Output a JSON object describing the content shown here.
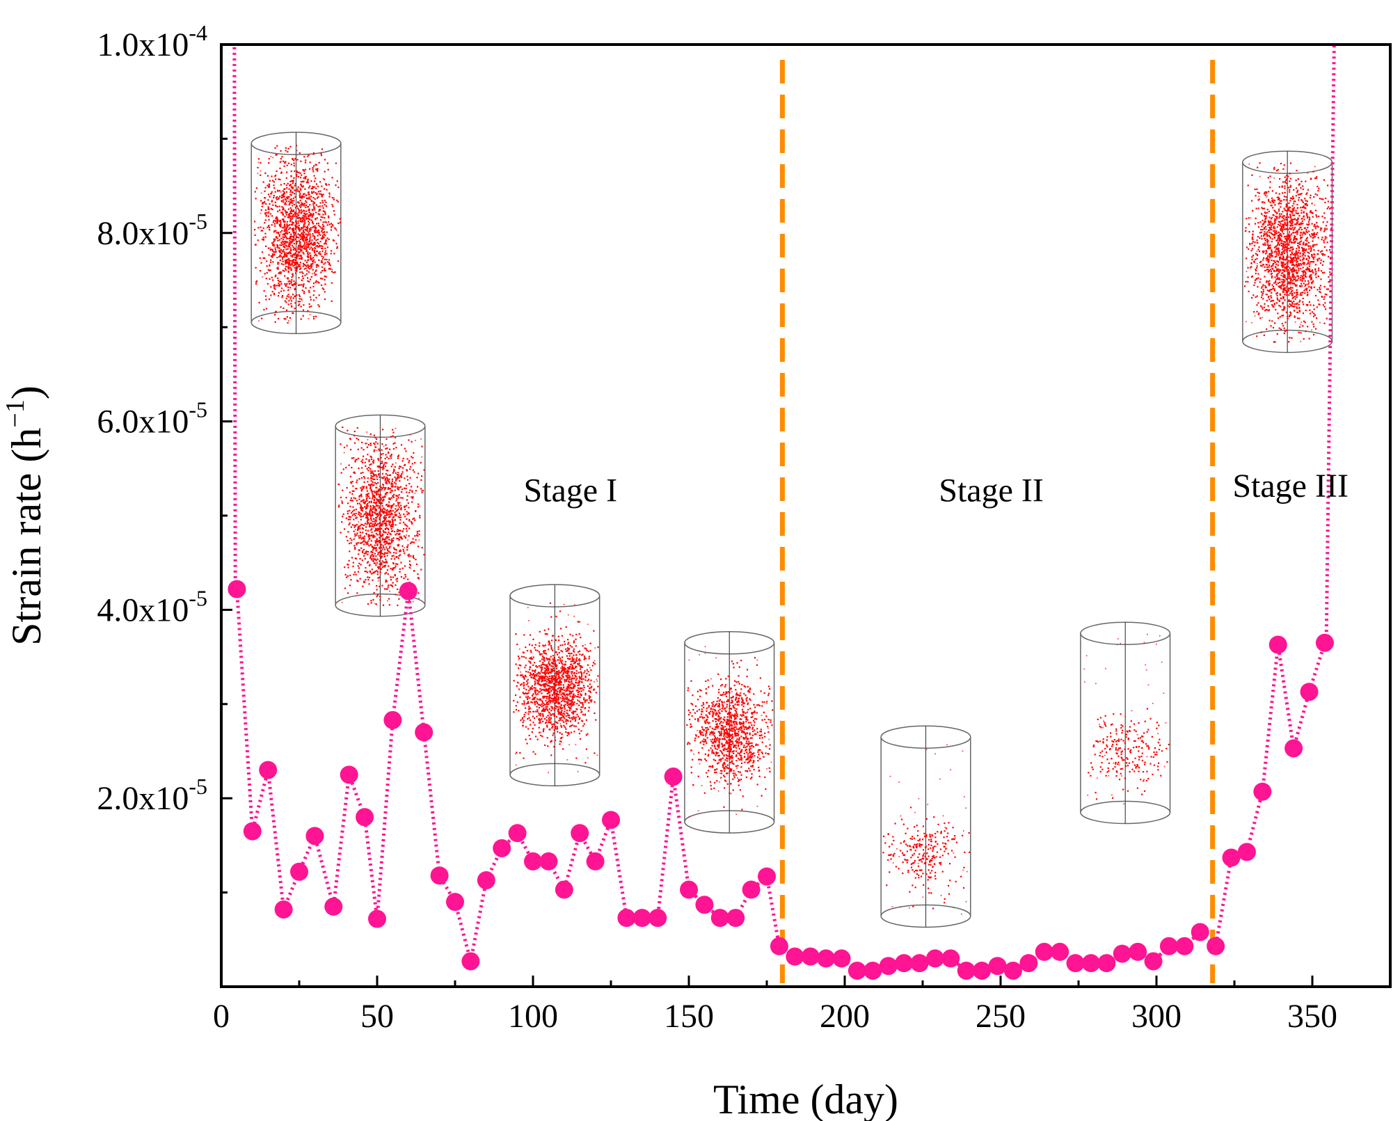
{
  "chart_data": {
    "type": "line",
    "xlabel": "Time (day)",
    "ylabel": "Strain rate (h",
    "ylabel_sup": "−1",
    "ylabel_suffix": ")",
    "xlim": [
      0,
      375
    ],
    "ylim": [
      0,
      0.0001
    ],
    "x_ticks": [
      0,
      50,
      100,
      150,
      200,
      250,
      300,
      350
    ],
    "x_tick_labels": [
      "0",
      "50",
      "100",
      "150",
      "200",
      "250",
      "300",
      "350"
    ],
    "y_ticks": [
      2e-05,
      4e-05,
      6e-05,
      8e-05,
      0.0001
    ],
    "y_tick_labels": [
      {
        "mant": "2.0x10",
        "exp": "-5"
      },
      {
        "mant": "4.0x10",
        "exp": "-5"
      },
      {
        "mant": "6.0x10",
        "exp": "-5"
      },
      {
        "mant": "8.0x10",
        "exp": "-5"
      },
      {
        "mant": "1.0x10",
        "exp": "-4"
      }
    ],
    "grid": false,
    "line_style": "dotted",
    "colors": {
      "series": "#ff1493",
      "boundary": "#ff8c00",
      "cloud": "#ff0000",
      "axis": "#000000"
    },
    "boundaries_x": [
      180,
      318
    ],
    "stages": [
      {
        "label": "Stage I",
        "x": 112,
        "y": 5.15e-05
      },
      {
        "label": "Stage II",
        "x": 247,
        "y": 5.15e-05
      },
      {
        "label": "Stage III",
        "x": 343,
        "y": 5.2e-05
      }
    ],
    "series": [
      {
        "points": [
          [
            5,
            4.22e-05
          ],
          [
            10,
            1.65e-05
          ],
          [
            15,
            2.3e-05
          ],
          [
            20,
            8.2e-06
          ],
          [
            25,
            1.22e-05
          ],
          [
            30,
            1.6e-05
          ],
          [
            36,
            8.5e-06
          ],
          [
            41,
            2.25e-05
          ],
          [
            46,
            1.8e-05
          ],
          [
            50,
            7.2e-06
          ],
          [
            55,
            2.83e-05
          ],
          [
            60,
            4.2e-05
          ],
          [
            65,
            2.7e-05
          ],
          [
            70,
            1.18e-05
          ],
          [
            75,
            9e-06
          ],
          [
            80,
            2.7e-06
          ],
          [
            85,
            1.13e-05
          ],
          [
            90,
            1.47e-05
          ],
          [
            95,
            1.63e-05
          ],
          [
            100,
            1.33e-05
          ],
          [
            105,
            1.33e-05
          ],
          [
            110,
            1.03e-05
          ],
          [
            115,
            1.63e-05
          ],
          [
            120,
            1.33e-05
          ],
          [
            125,
            1.77e-05
          ],
          [
            130,
            7.3e-06
          ],
          [
            135,
            7.3e-06
          ],
          [
            140,
            7.3e-06
          ],
          [
            145,
            2.23e-05
          ],
          [
            150,
            1.03e-05
          ],
          [
            155,
            8.7e-06
          ],
          [
            160,
            7.3e-06
          ],
          [
            165,
            7.3e-06
          ],
          [
            170,
            1.03e-05
          ],
          [
            175,
            1.17e-05
          ],
          [
            179,
            4.3e-06
          ],
          [
            184,
            3.2e-06
          ],
          [
            189,
            3.2e-06
          ],
          [
            194,
            3e-06
          ],
          [
            199,
            3e-06
          ],
          [
            204,
            1.7e-06
          ],
          [
            209,
            1.7e-06
          ],
          [
            214,
            2.2e-06
          ],
          [
            219,
            2.5e-06
          ],
          [
            224,
            2.5e-06
          ],
          [
            229,
            3e-06
          ],
          [
            234,
            3e-06
          ],
          [
            239,
            1.7e-06
          ],
          [
            244,
            1.7e-06
          ],
          [
            249,
            2.2e-06
          ],
          [
            254,
            1.7e-06
          ],
          [
            259,
            2.5e-06
          ],
          [
            264,
            3.7e-06
          ],
          [
            269,
            3.7e-06
          ],
          [
            274,
            2.5e-06
          ],
          [
            279,
            2.5e-06
          ],
          [
            284,
            2.5e-06
          ],
          [
            289,
            3.5e-06
          ],
          [
            294,
            3.7e-06
          ],
          [
            299,
            2.7e-06
          ],
          [
            304,
            4.3e-06
          ],
          [
            309,
            4.3e-06
          ],
          [
            314,
            5.8e-06
          ],
          [
            319,
            4.3e-06
          ],
          [
            324,
            1.37e-05
          ],
          [
            329,
            1.43e-05
          ],
          [
            334,
            2.07e-05
          ],
          [
            339,
            3.63e-05
          ],
          [
            344,
            2.53e-05
          ],
          [
            349,
            3.13e-05
          ],
          [
            354,
            3.65e-05
          ]
        ],
        "tails": [
          [
            4.5,
            4.3e-05
          ],
          [
            4.2,
            0.0001
          ],
          [
            354.5,
            3.7e-05
          ],
          [
            357,
            0.0001
          ]
        ]
      }
    ],
    "ae_clouds": [
      {
        "x": 24,
        "y": 8e-05,
        "h": 1.9e-05,
        "density": 0.95,
        "shape": "tall"
      },
      {
        "x": 51,
        "y": 5e-05,
        "h": 1.9e-05,
        "density": 0.85,
        "shape": "tall"
      },
      {
        "x": 107,
        "y": 3.2e-05,
        "h": 1.9e-05,
        "density": 0.8,
        "shape": "mid"
      },
      {
        "x": 163,
        "y": 2.7e-05,
        "h": 1.9e-05,
        "density": 0.6,
        "shape": "mid"
      },
      {
        "x": 226,
        "y": 1.7e-05,
        "h": 1.9e-05,
        "density": 0.12,
        "shape": "sparse"
      },
      {
        "x": 290,
        "y": 2.8e-05,
        "h": 1.9e-05,
        "density": 0.1,
        "shape": "sparse"
      },
      {
        "x": 342,
        "y": 7.8e-05,
        "h": 1.9e-05,
        "density": 1.0,
        "shape": "tall"
      }
    ]
  }
}
